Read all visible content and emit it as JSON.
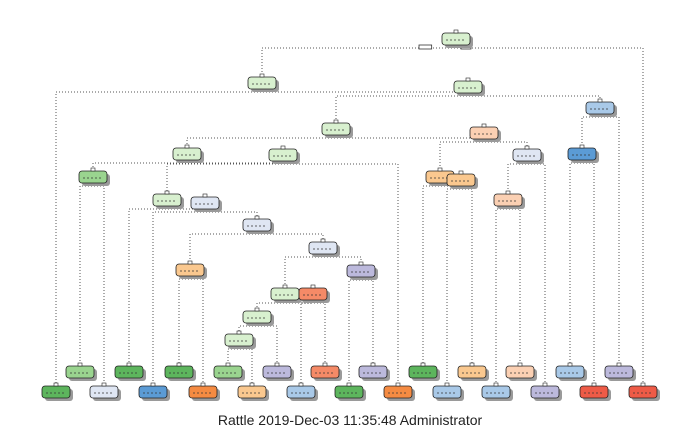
{
  "caption": "Rattle 2019-Dec-03 11:35:48 Administrator",
  "colors": {
    "light_green": "#d8f0cf",
    "green": "#5db55d",
    "mid_green": "#9ad48f",
    "very_light_blue": "#dfe6f3",
    "light_blue": "#a9c9e8",
    "blue": "#5b9bd5",
    "lavender": "#bcb9dc",
    "peach": "#fbd0b3",
    "light_orange": "#fac88f",
    "salmon": "#f58a67",
    "orange": "#f58b42",
    "red": "#ee5b47",
    "edge": "#555555"
  },
  "nodes": [
    {
      "id": "root",
      "color": "light_green"
    },
    {
      "id": "n-left",
      "color": "light_green"
    },
    {
      "id": "n-right",
      "color": "light_green"
    },
    {
      "id": "n-r1",
      "color": "light_green"
    },
    {
      "id": "n-blue-mid",
      "color": "light_blue"
    },
    {
      "id": "n-a",
      "color": "light_green"
    },
    {
      "id": "n-b",
      "color": "light_green"
    },
    {
      "id": "n-peach",
      "color": "peach"
    },
    {
      "id": "n-pale",
      "color": "very_light_blue"
    },
    {
      "id": "n-blue2",
      "color": "blue"
    },
    {
      "id": "n-green-l",
      "color": "mid_green"
    },
    {
      "id": "n-c",
      "color": "light_green"
    },
    {
      "id": "n-d",
      "color": "very_light_blue"
    },
    {
      "id": "n-e",
      "color": "very_light_blue"
    },
    {
      "id": "n-orange1",
      "color": "light_orange"
    },
    {
      "id": "n-orange2",
      "color": "light_orange"
    },
    {
      "id": "n-peach2",
      "color": "peach"
    },
    {
      "id": "n-f",
      "color": "very_light_blue"
    },
    {
      "id": "n-orange3",
      "color": "light_orange"
    },
    {
      "id": "n-lav",
      "color": "lavender"
    },
    {
      "id": "n-g",
      "color": "light_green"
    },
    {
      "id": "n-salmon",
      "color": "salmon"
    },
    {
      "id": "n-h",
      "color": "light_green"
    },
    {
      "id": "n-i",
      "color": "light_green"
    },
    {
      "id": "leaf-1",
      "color": "green"
    },
    {
      "id": "leaf-2",
      "color": "mid_green"
    },
    {
      "id": "leaf-3",
      "color": "very_light_blue"
    },
    {
      "id": "leaf-4",
      "color": "green"
    },
    {
      "id": "leaf-5",
      "color": "blue"
    },
    {
      "id": "leaf-6",
      "color": "green"
    },
    {
      "id": "leaf-7",
      "color": "orange"
    },
    {
      "id": "leaf-8",
      "color": "mid_green"
    },
    {
      "id": "leaf-9",
      "color": "light_orange"
    },
    {
      "id": "leaf-10",
      "color": "lavender"
    },
    {
      "id": "leaf-11",
      "color": "light_blue"
    },
    {
      "id": "leaf-12",
      "color": "salmon"
    },
    {
      "id": "leaf-13",
      "color": "green"
    },
    {
      "id": "leaf-14",
      "color": "lavender"
    },
    {
      "id": "leaf-15",
      "color": "orange"
    },
    {
      "id": "leaf-16",
      "color": "green"
    },
    {
      "id": "leaf-17",
      "color": "light_blue"
    },
    {
      "id": "leaf-18",
      "color": "light_orange"
    },
    {
      "id": "leaf-19",
      "color": "light_blue"
    },
    {
      "id": "leaf-20",
      "color": "peach"
    },
    {
      "id": "leaf-21",
      "color": "lavender"
    },
    {
      "id": "leaf-22",
      "color": "light_blue"
    },
    {
      "id": "leaf-23",
      "color": "red"
    },
    {
      "id": "leaf-24",
      "color": "lavender"
    },
    {
      "id": "leaf-25",
      "color": "red"
    }
  ]
}
